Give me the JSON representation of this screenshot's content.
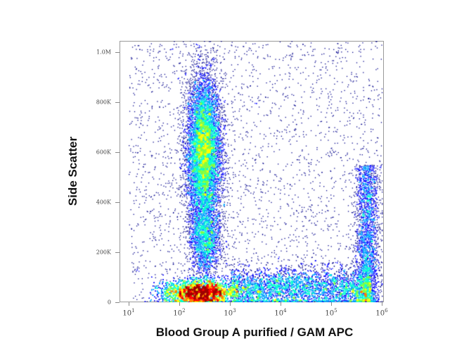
{
  "chart_data": {
    "type": "scatter",
    "subtype": "density-dot-plot",
    "xlabel": "Blood Group A purified / GAM APC",
    "ylabel": "Side Scatter",
    "x_scale": "log",
    "xlim": [
      10,
      1000000
    ],
    "ylim": [
      0,
      1045000
    ],
    "x_ticks": [
      {
        "exp": "1"
      },
      {
        "exp": "2"
      },
      {
        "exp": "3"
      },
      {
        "exp": "4"
      },
      {
        "exp": "5"
      },
      {
        "exp": "6"
      }
    ],
    "y_ticks": [
      {
        "label": "0",
        "value": 0
      },
      {
        "label": "200K",
        "value": 200000
      },
      {
        "label": "400K",
        "value": 400000
      },
      {
        "label": "600K",
        "value": 600000
      },
      {
        "label": "800K",
        "value": 800000
      },
      {
        "label": "1.0M",
        "value": 1000000
      }
    ],
    "colormap": [
      "#00008b",
      "#0000ff",
      "#00a0ff",
      "#00ffd0",
      "#80ff40",
      "#ffff00",
      "#ff8000",
      "#ff0000",
      "#a00000"
    ],
    "populations": [
      {
        "x_center": 300,
        "y_center": 600000,
        "x_spread_decades": 0.17,
        "y_spread": 150000,
        "count": 9000
      },
      {
        "x_center": 250,
        "y_center": 40000,
        "x_spread_decades": 0.35,
        "y_spread": 25000,
        "count": 9000
      },
      {
        "x_center": 320,
        "y_center": 250000,
        "x_spread_decades": 0.15,
        "y_spread": 70000,
        "count": 2000
      },
      {
        "x_range": [
          1000,
          600000
        ],
        "y_center": 55000,
        "y_spread": 40000,
        "count": 6000
      },
      {
        "x_center": 500000,
        "y_range": [
          0,
          550000
        ],
        "x_spread_decades": 0.12,
        "count": 3000
      },
      {
        "x_range": [
          10,
          1000000
        ],
        "y_range": [
          0,
          1045000
        ],
        "count": 2500
      }
    ]
  }
}
